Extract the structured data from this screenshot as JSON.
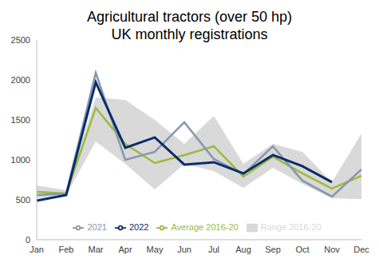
{
  "chart_data": {
    "type": "line",
    "title": "Agricultural tractors (over 50 hp)",
    "subtitle": "UK monthly registrations",
    "categories": [
      "Jan",
      "Feb",
      "Mar",
      "Apr",
      "May",
      "Jun",
      "Jul",
      "Aug",
      "Sep",
      "Oct",
      "Nov",
      "Dec"
    ],
    "series": [
      {
        "name": "Range 2016-20",
        "type": "area",
        "color": "#d9d9d9",
        "values": [
          [
            520,
            680
          ],
          [
            560,
            620
          ],
          [
            1230,
            1780
          ],
          [
            950,
            1750
          ],
          [
            630,
            1500
          ],
          [
            950,
            1200
          ],
          [
            860,
            1550
          ],
          [
            650,
            950
          ],
          [
            900,
            1200
          ],
          [
            700,
            1100
          ],
          [
            520,
            720
          ],
          [
            510,
            1330
          ]
        ]
      },
      {
        "name": "Average 2016-20",
        "type": "line",
        "color": "#9bbb3b",
        "values": [
          600,
          580,
          1650,
          1200,
          960,
          1060,
          1170,
          790,
          1040,
          830,
          640,
          800
        ]
      },
      {
        "name": "2021",
        "type": "line",
        "color": "#8497b0",
        "values": [
          560,
          580,
          2090,
          1000,
          1100,
          1470,
          1010,
          820,
          1170,
          740,
          540,
          880
        ]
      },
      {
        "name": "2022",
        "type": "line",
        "color": "#0b2c6b",
        "values": [
          490,
          560,
          1970,
          1150,
          1280,
          940,
          970,
          830,
          1060,
          920,
          720,
          null
        ]
      }
    ],
    "ylim": [
      0,
      2500
    ],
    "yticks": [
      0,
      500,
      1000,
      1500,
      2000,
      2500
    ],
    "grid": false,
    "legend": "bottom"
  }
}
